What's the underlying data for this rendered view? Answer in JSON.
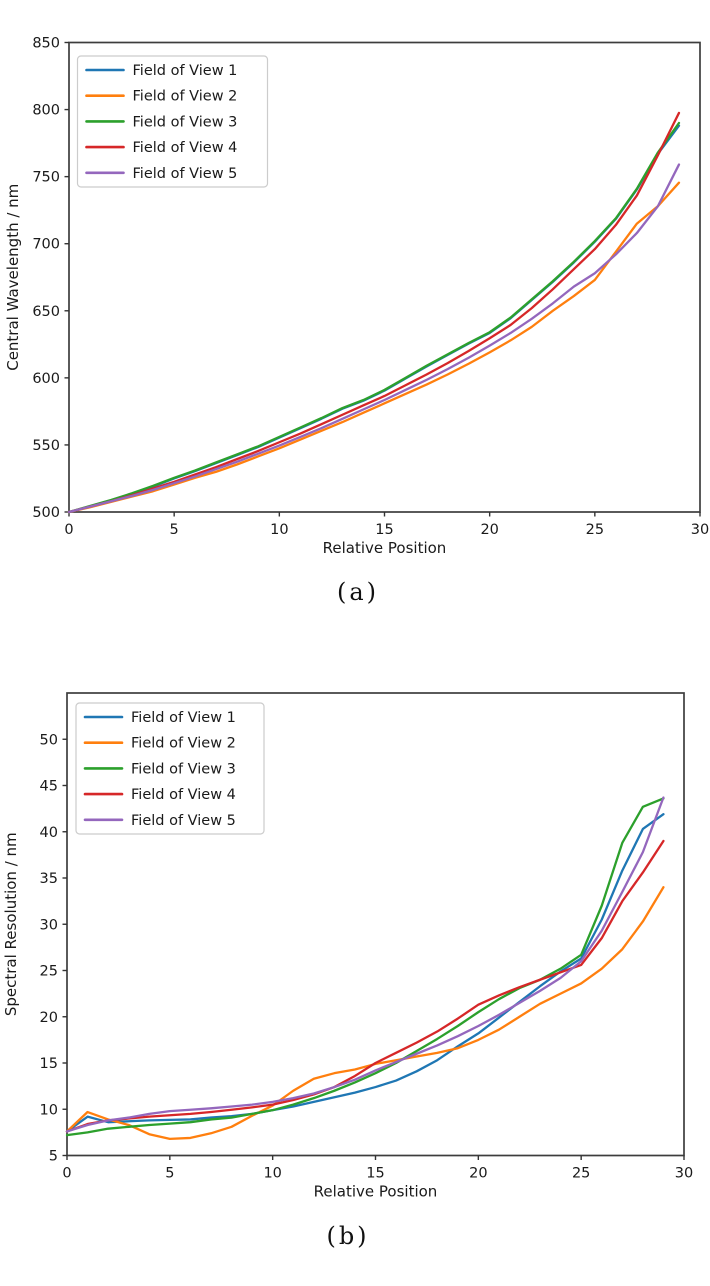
{
  "figure": {
    "background": "#ffffff",
    "text_color": "#1a1a1a",
    "spine_color": "#3d3d3d",
    "legend_border_color": "#cccccc"
  },
  "chart_data": [
    {
      "id": "a",
      "type": "line",
      "caption": "(a)",
      "xlabel": "Relative Position",
      "ylabel": "Central Wavelength / nm",
      "xlim": [
        0,
        30
      ],
      "ylim": [
        500,
        850
      ],
      "xticks": [
        0,
        5,
        10,
        15,
        20,
        25,
        30
      ],
      "yticks": [
        500,
        550,
        600,
        650,
        700,
        750,
        800,
        850
      ],
      "grid": false,
      "legend_position": "upper left",
      "x": [
        0,
        1,
        2,
        3,
        4,
        5,
        6,
        7,
        8,
        9,
        10,
        11,
        12,
        13,
        14,
        15,
        16,
        17,
        18,
        19,
        20,
        21,
        22,
        23,
        24,
        25,
        26,
        27,
        28,
        29
      ],
      "series": [
        {
          "name": "Field of View 1",
          "color": "#1f77b4",
          "values": [
            500,
            504,
            508.5,
            513.5,
            519,
            525,
            530.5,
            536.5,
            542.5,
            548.5,
            555.5,
            562.5,
            569.5,
            577,
            583,
            590.5,
            599.5,
            608.5,
            617,
            625.5,
            633.5,
            644.5,
            658,
            671.5,
            686,
            701.5,
            718.5,
            740.5,
            767,
            788
          ]
        },
        {
          "name": "Field of View 2",
          "color": "#ff7f0e",
          "values": [
            500,
            503.5,
            507.5,
            511.5,
            515.5,
            520.5,
            525.5,
            530,
            535.5,
            541.5,
            547.5,
            554,
            560.5,
            567,
            574,
            581,
            588,
            595,
            602.5,
            610.5,
            619,
            628,
            638,
            650,
            661,
            673,
            694,
            715,
            728,
            745.5
          ]
        },
        {
          "name": "Field of View 3",
          "color": "#2ca02c",
          "values": [
            500,
            504.5,
            509,
            514,
            519.5,
            525.5,
            531,
            537,
            543,
            549,
            556,
            563,
            570,
            577.5,
            583.5,
            591,
            600,
            609,
            617.5,
            626,
            634,
            645,
            658.5,
            672,
            686.5,
            702,
            719,
            741,
            768,
            790
          ]
        },
        {
          "name": "Field of View 4",
          "color": "#d62728",
          "values": [
            500,
            504,
            508,
            512.5,
            517.5,
            522.5,
            528,
            533.5,
            539.5,
            545.5,
            552,
            558.5,
            565.5,
            572.5,
            579.5,
            586.5,
            594.5,
            602.5,
            611,
            620,
            629.5,
            639.5,
            652,
            666,
            681,
            696,
            714,
            736,
            766,
            797.5
          ]
        },
        {
          "name": "Field of View 5",
          "color": "#9467bd",
          "values": [
            500,
            504,
            508,
            512,
            516.5,
            521.5,
            526.5,
            532,
            537.5,
            543.5,
            549.5,
            556,
            562.5,
            569.5,
            576.5,
            583.5,
            591,
            598.5,
            606.5,
            615,
            624,
            633.5,
            644,
            655.5,
            668,
            678,
            692,
            708,
            728,
            759
          ]
        }
      ]
    },
    {
      "id": "b",
      "type": "line",
      "caption": "(b)",
      "xlabel": "Relative Position",
      "ylabel": "Spectral Resolution / nm",
      "xlim": [
        0,
        30
      ],
      "ylim": [
        5,
        55
      ],
      "xticks": [
        0,
        5,
        10,
        15,
        20,
        25,
        30
      ],
      "yticks": [
        5,
        10,
        15,
        20,
        25,
        30,
        35,
        40,
        45,
        50
      ],
      "grid": false,
      "legend_position": "upper left",
      "x": [
        0,
        1,
        2,
        3,
        4,
        5,
        6,
        7,
        8,
        9,
        10,
        11,
        12,
        13,
        14,
        15,
        16,
        17,
        18,
        19,
        20,
        21,
        22,
        23,
        24,
        25,
        26,
        27,
        28,
        29
      ],
      "series": [
        {
          "name": "Field of View 1",
          "color": "#1f77b4",
          "values": [
            7.6,
            9.2,
            8.6,
            8.7,
            8.8,
            8.85,
            8.9,
            9.1,
            9.25,
            9.5,
            9.9,
            10.3,
            10.8,
            11.3,
            11.8,
            12.4,
            13.1,
            14.1,
            15.3,
            16.8,
            18.2,
            19.9,
            21.6,
            23.3,
            24.9,
            26.3,
            30.5,
            35.8,
            40.3,
            41.9
          ]
        },
        {
          "name": "Field of View 2",
          "color": "#ff7f0e",
          "values": [
            7.6,
            9.7,
            8.9,
            8.3,
            7.3,
            6.8,
            6.9,
            7.4,
            8.1,
            9.3,
            10.4,
            12.0,
            13.3,
            13.9,
            14.3,
            14.9,
            15.3,
            15.7,
            16.1,
            16.6,
            17.5,
            18.6,
            20.0,
            21.4,
            22.5,
            23.6,
            25.2,
            27.3,
            30.3,
            34.0
          ]
        },
        {
          "name": "Field of View 3",
          "color": "#2ca02c",
          "values": [
            7.2,
            7.5,
            7.9,
            8.1,
            8.3,
            8.45,
            8.6,
            8.9,
            9.1,
            9.5,
            9.9,
            10.5,
            11.2,
            12.0,
            12.9,
            13.9,
            15.0,
            16.3,
            17.6,
            19.0,
            20.5,
            21.9,
            23.1,
            24.0,
            25.2,
            26.7,
            32.0,
            38.8,
            42.7,
            43.6
          ]
        },
        {
          "name": "Field of View 4",
          "color": "#d62728",
          "values": [
            7.6,
            8.4,
            8.8,
            9.0,
            9.2,
            9.35,
            9.5,
            9.7,
            9.95,
            10.2,
            10.5,
            11.0,
            11.6,
            12.4,
            13.6,
            15.0,
            16.1,
            17.2,
            18.4,
            19.8,
            21.3,
            22.3,
            23.2,
            24.0,
            24.8,
            25.6,
            28.5,
            32.5,
            35.6,
            39.0
          ]
        },
        {
          "name": "Field of View 5",
          "color": "#9467bd",
          "values": [
            7.6,
            8.3,
            8.8,
            9.1,
            9.5,
            9.8,
            9.95,
            10.1,
            10.3,
            10.5,
            10.8,
            11.2,
            11.7,
            12.4,
            13.2,
            14.2,
            15.1,
            16.0,
            16.9,
            17.9,
            19.0,
            20.2,
            21.5,
            22.8,
            24.2,
            26.0,
            29.3,
            33.5,
            37.8,
            43.7
          ]
        }
      ]
    }
  ]
}
